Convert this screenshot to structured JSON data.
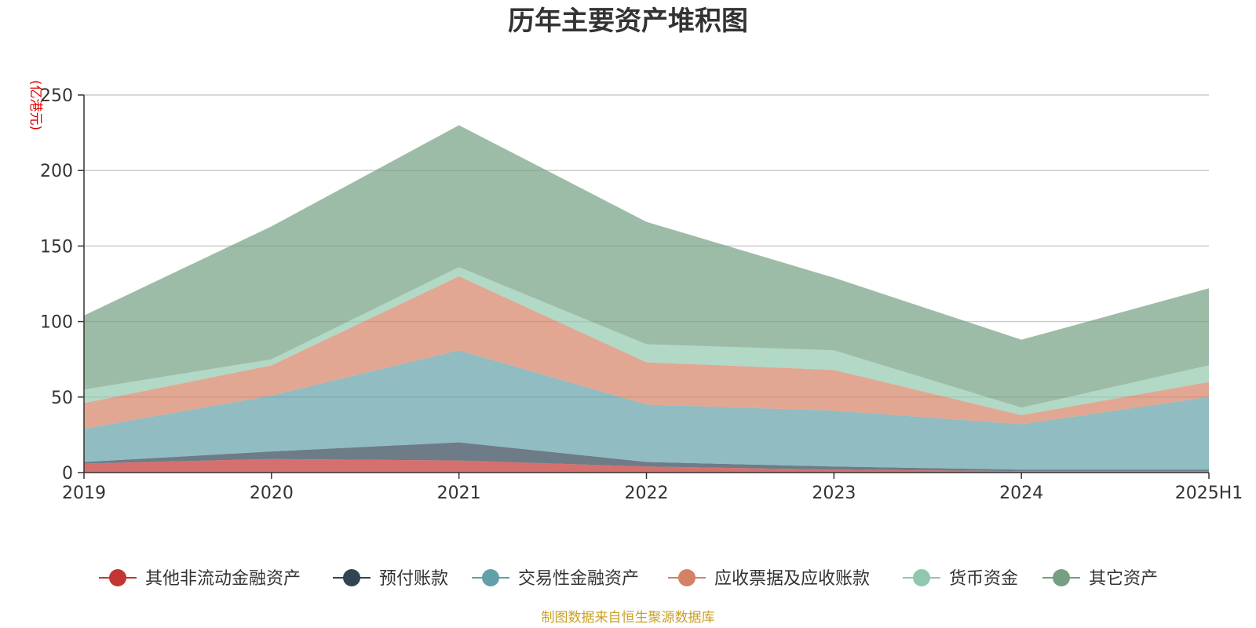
{
  "chart_data": {
    "type": "area",
    "stacked": true,
    "title": "历年主要资产堆积图",
    "unit_label": "(亿港元)",
    "categories": [
      "2019",
      "2020",
      "2021",
      "2022",
      "2023",
      "2024",
      "2025H1"
    ],
    "ylim": [
      0,
      250
    ],
    "yticks": [
      0,
      50,
      100,
      150,
      200,
      250
    ],
    "grid": true,
    "legend_position": "bottom",
    "series": [
      {
        "name": "其他非流动金融资产",
        "color": "#c23531",
        "values": [
          6,
          9,
          8,
          4,
          2,
          1,
          1
        ]
      },
      {
        "name": "预付账款",
        "color": "#2f4554",
        "values": [
          1,
          5,
          12,
          3,
          2,
          1,
          1
        ]
      },
      {
        "name": "交易性金融资产",
        "color": "#61a0a8",
        "values": [
          22,
          37,
          61,
          38,
          37,
          30,
          48
        ]
      },
      {
        "name": "应收票据及应收账款",
        "color": "#d48265",
        "values": [
          17,
          20,
          49,
          28,
          27,
          6,
          10
        ]
      },
      {
        "name": "货币资金",
        "color": "#91c7ae",
        "values": [
          9,
          4,
          6,
          12,
          13,
          5,
          11
        ]
      },
      {
        "name": "其它资产",
        "color": "#749f83",
        "values": [
          49,
          88,
          94,
          81,
          48,
          45,
          51
        ]
      }
    ],
    "source": "制图数据来自恒生聚源数据库"
  }
}
